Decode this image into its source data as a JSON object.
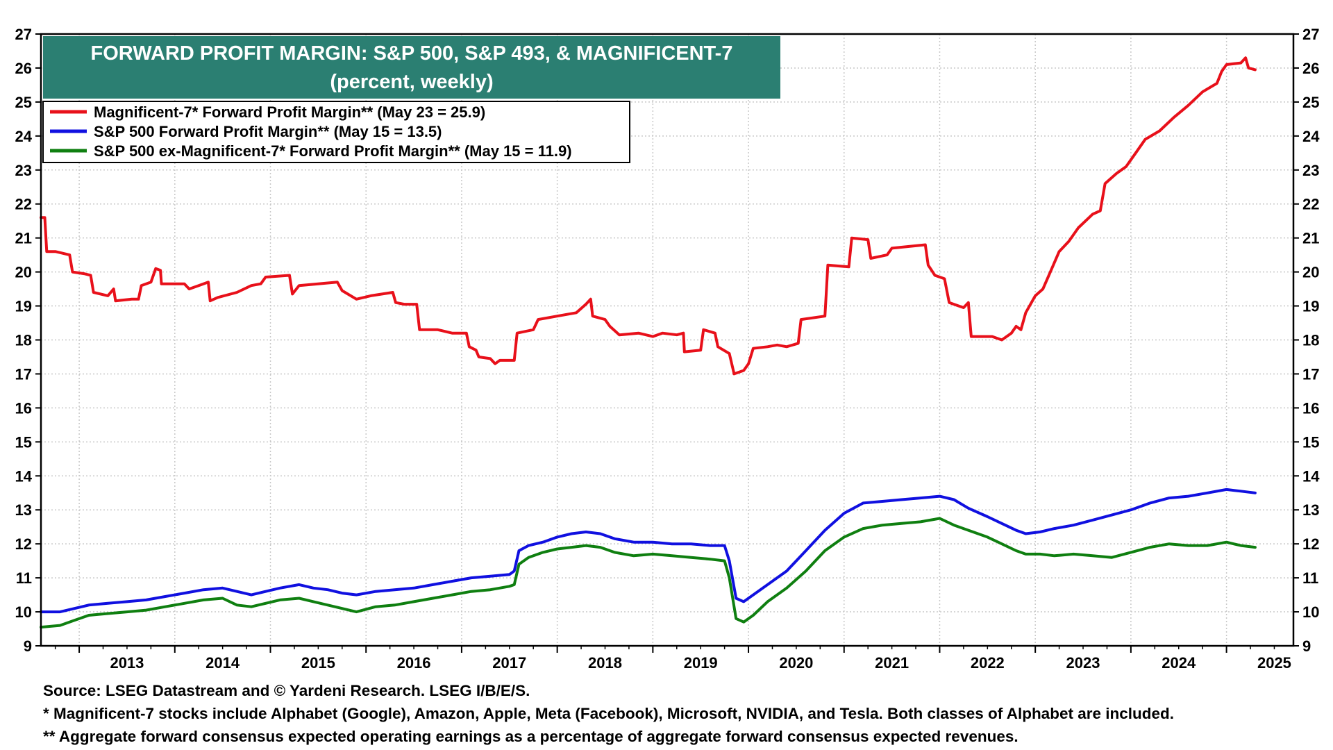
{
  "chart_data": {
    "type": "line",
    "title": "FORWARD PROFIT MARGIN: S&P 500, S&P 493, & MAGNIFICENT-7",
    "subtitle": "(percent, weekly)",
    "ylim": [
      9,
      27
    ],
    "y_ticks": [
      9,
      10,
      11,
      12,
      13,
      14,
      15,
      16,
      17,
      18,
      19,
      20,
      21,
      22,
      23,
      24,
      25,
      26,
      27
    ],
    "x_range": [
      2012.6,
      2025.7
    ],
    "x_tick_labels": [
      "2013",
      "2014",
      "2015",
      "2016",
      "2017",
      "2018",
      "2019",
      "2020",
      "2021",
      "2022",
      "2023",
      "2024",
      "2025"
    ],
    "grid": true,
    "legend_position": "top-left",
    "series": [
      {
        "name": "Magnificent-7* Forward Profit Margin** (May 23 = 25.9)",
        "color": "#e8101a",
        "points": [
          [
            2012.6,
            21.6
          ],
          [
            2012.64,
            21.6
          ],
          [
            2012.66,
            20.6
          ],
          [
            2012.75,
            20.6
          ],
          [
            2012.9,
            20.5
          ],
          [
            2012.93,
            20.0
          ],
          [
            2013.05,
            19.95
          ],
          [
            2013.12,
            19.9
          ],
          [
            2013.15,
            19.4
          ],
          [
            2013.3,
            19.3
          ],
          [
            2013.36,
            19.5
          ],
          [
            2013.38,
            19.15
          ],
          [
            2013.55,
            19.2
          ],
          [
            2013.62,
            19.2
          ],
          [
            2013.65,
            19.6
          ],
          [
            2013.75,
            19.7
          ],
          [
            2013.8,
            20.1
          ],
          [
            2013.85,
            20.05
          ],
          [
            2013.86,
            19.65
          ],
          [
            2014.1,
            19.65
          ],
          [
            2014.15,
            19.5
          ],
          [
            2014.25,
            19.6
          ],
          [
            2014.35,
            19.7
          ],
          [
            2014.37,
            19.15
          ],
          [
            2014.45,
            19.25
          ],
          [
            2014.65,
            19.4
          ],
          [
            2014.8,
            19.6
          ],
          [
            2014.9,
            19.65
          ],
          [
            2014.95,
            19.85
          ],
          [
            2015.2,
            19.9
          ],
          [
            2015.23,
            19.35
          ],
          [
            2015.3,
            19.6
          ],
          [
            2015.7,
            19.7
          ],
          [
            2015.75,
            19.45
          ],
          [
            2015.9,
            19.2
          ],
          [
            2016.05,
            19.3
          ],
          [
            2016.28,
            19.4
          ],
          [
            2016.31,
            19.1
          ],
          [
            2016.4,
            19.05
          ],
          [
            2016.53,
            19.05
          ],
          [
            2016.56,
            18.3
          ],
          [
            2016.75,
            18.3
          ],
          [
            2016.9,
            18.2
          ],
          [
            2017.05,
            18.2
          ],
          [
            2017.08,
            17.8
          ],
          [
            2017.15,
            17.7
          ],
          [
            2017.18,
            17.5
          ],
          [
            2017.3,
            17.45
          ],
          [
            2017.35,
            17.3
          ],
          [
            2017.4,
            17.4
          ],
          [
            2017.55,
            17.4
          ],
          [
            2017.58,
            18.2
          ],
          [
            2017.75,
            18.3
          ],
          [
            2017.8,
            18.6
          ],
          [
            2018.0,
            18.7
          ],
          [
            2018.2,
            18.8
          ],
          [
            2018.3,
            19.05
          ],
          [
            2018.35,
            19.2
          ],
          [
            2018.37,
            18.7
          ],
          [
            2018.5,
            18.6
          ],
          [
            2018.55,
            18.4
          ],
          [
            2018.65,
            18.15
          ],
          [
            2018.85,
            18.2
          ],
          [
            2019.0,
            18.1
          ],
          [
            2019.1,
            18.2
          ],
          [
            2019.25,
            18.15
          ],
          [
            2019.32,
            18.2
          ],
          [
            2019.33,
            17.65
          ],
          [
            2019.5,
            17.7
          ],
          [
            2019.53,
            18.3
          ],
          [
            2019.65,
            18.2
          ],
          [
            2019.68,
            17.8
          ],
          [
            2019.8,
            17.6
          ],
          [
            2019.85,
            17.0
          ],
          [
            2019.95,
            17.1
          ],
          [
            2020.0,
            17.3
          ],
          [
            2020.05,
            17.75
          ],
          [
            2020.2,
            17.8
          ],
          [
            2020.3,
            17.85
          ],
          [
            2020.4,
            17.8
          ],
          [
            2020.52,
            17.9
          ],
          [
            2020.55,
            18.6
          ],
          [
            2020.8,
            18.7
          ],
          [
            2020.83,
            20.2
          ],
          [
            2021.05,
            20.15
          ],
          [
            2021.08,
            21.0
          ],
          [
            2021.25,
            20.95
          ],
          [
            2021.28,
            20.4
          ],
          [
            2021.45,
            20.5
          ],
          [
            2021.5,
            20.7
          ],
          [
            2021.85,
            20.8
          ],
          [
            2021.88,
            20.2
          ],
          [
            2021.95,
            19.9
          ],
          [
            2022.05,
            19.8
          ],
          [
            2022.1,
            19.1
          ],
          [
            2022.2,
            19.0
          ],
          [
            2022.25,
            18.95
          ],
          [
            2022.3,
            19.1
          ],
          [
            2022.33,
            18.1
          ],
          [
            2022.55,
            18.1
          ],
          [
            2022.65,
            18.0
          ],
          [
            2022.75,
            18.2
          ],
          [
            2022.8,
            18.4
          ],
          [
            2022.85,
            18.3
          ],
          [
            2022.9,
            18.8
          ],
          [
            2023.0,
            19.3
          ],
          [
            2023.08,
            19.5
          ],
          [
            2023.15,
            19.95
          ],
          [
            2023.25,
            20.6
          ],
          [
            2023.35,
            20.9
          ],
          [
            2023.45,
            21.3
          ],
          [
            2023.6,
            21.7
          ],
          [
            2023.68,
            21.8
          ],
          [
            2023.73,
            22.6
          ],
          [
            2023.85,
            22.9
          ],
          [
            2023.95,
            23.1
          ],
          [
            2024.05,
            23.5
          ],
          [
            2024.15,
            23.9
          ],
          [
            2024.3,
            24.15
          ],
          [
            2024.45,
            24.55
          ],
          [
            2024.6,
            24.9
          ],
          [
            2024.75,
            25.3
          ],
          [
            2024.9,
            25.55
          ],
          [
            2024.95,
            25.9
          ],
          [
            2025.0,
            26.1
          ],
          [
            2025.15,
            26.15
          ],
          [
            2025.2,
            26.3
          ],
          [
            2025.23,
            26.0
          ],
          [
            2025.3,
            25.95
          ]
        ]
      },
      {
        "name": "S&P 500 Forward Profit Margin** (May 15 = 13.5)",
        "color": "#1010e0",
        "points": [
          [
            2012.6,
            10.0
          ],
          [
            2012.8,
            10.0
          ],
          [
            2012.95,
            10.1
          ],
          [
            2013.1,
            10.2
          ],
          [
            2013.3,
            10.25
          ],
          [
            2013.5,
            10.3
          ],
          [
            2013.7,
            10.35
          ],
          [
            2013.9,
            10.45
          ],
          [
            2014.1,
            10.55
          ],
          [
            2014.3,
            10.65
          ],
          [
            2014.5,
            10.7
          ],
          [
            2014.65,
            10.6
          ],
          [
            2014.8,
            10.5
          ],
          [
            2014.95,
            10.6
          ],
          [
            2015.1,
            10.7
          ],
          [
            2015.3,
            10.8
          ],
          [
            2015.45,
            10.7
          ],
          [
            2015.6,
            10.65
          ],
          [
            2015.75,
            10.55
          ],
          [
            2015.9,
            10.5
          ],
          [
            2016.1,
            10.6
          ],
          [
            2016.3,
            10.65
          ],
          [
            2016.5,
            10.7
          ],
          [
            2016.7,
            10.8
          ],
          [
            2016.9,
            10.9
          ],
          [
            2017.1,
            11.0
          ],
          [
            2017.3,
            11.05
          ],
          [
            2017.5,
            11.1
          ],
          [
            2017.55,
            11.2
          ],
          [
            2017.6,
            11.8
          ],
          [
            2017.7,
            11.95
          ],
          [
            2017.85,
            12.05
          ],
          [
            2018.0,
            12.2
          ],
          [
            2018.15,
            12.3
          ],
          [
            2018.3,
            12.35
          ],
          [
            2018.45,
            12.3
          ],
          [
            2018.6,
            12.15
          ],
          [
            2018.8,
            12.05
          ],
          [
            2019.0,
            12.05
          ],
          [
            2019.2,
            12.0
          ],
          [
            2019.4,
            12.0
          ],
          [
            2019.6,
            11.95
          ],
          [
            2019.75,
            11.95
          ],
          [
            2019.8,
            11.5
          ],
          [
            2019.87,
            10.4
          ],
          [
            2019.95,
            10.3
          ],
          [
            2020.05,
            10.5
          ],
          [
            2020.2,
            10.8
          ],
          [
            2020.4,
            11.2
          ],
          [
            2020.6,
            11.8
          ],
          [
            2020.8,
            12.4
          ],
          [
            2021.0,
            12.9
          ],
          [
            2021.2,
            13.2
          ],
          [
            2021.4,
            13.25
          ],
          [
            2021.6,
            13.3
          ],
          [
            2021.8,
            13.35
          ],
          [
            2022.0,
            13.4
          ],
          [
            2022.15,
            13.3
          ],
          [
            2022.3,
            13.05
          ],
          [
            2022.5,
            12.8
          ],
          [
            2022.65,
            12.6
          ],
          [
            2022.8,
            12.4
          ],
          [
            2022.9,
            12.3
          ],
          [
            2023.05,
            12.35
          ],
          [
            2023.2,
            12.45
          ],
          [
            2023.4,
            12.55
          ],
          [
            2023.6,
            12.7
          ],
          [
            2023.8,
            12.85
          ],
          [
            2024.0,
            13.0
          ],
          [
            2024.2,
            13.2
          ],
          [
            2024.4,
            13.35
          ],
          [
            2024.6,
            13.4
          ],
          [
            2024.8,
            13.5
          ],
          [
            2025.0,
            13.6
          ],
          [
            2025.15,
            13.55
          ],
          [
            2025.3,
            13.5
          ]
        ]
      },
      {
        "name": "S&P 500 ex-Magnificent-7* Forward Profit Margin** (May 15 = 11.9)",
        "color": "#0f7f10",
        "points": [
          [
            2012.6,
            9.55
          ],
          [
            2012.8,
            9.6
          ],
          [
            2012.95,
            9.75
          ],
          [
            2013.1,
            9.9
          ],
          [
            2013.3,
            9.95
          ],
          [
            2013.5,
            10.0
          ],
          [
            2013.7,
            10.05
          ],
          [
            2013.9,
            10.15
          ],
          [
            2014.1,
            10.25
          ],
          [
            2014.3,
            10.35
          ],
          [
            2014.5,
            10.4
          ],
          [
            2014.65,
            10.2
          ],
          [
            2014.8,
            10.15
          ],
          [
            2014.95,
            10.25
          ],
          [
            2015.1,
            10.35
          ],
          [
            2015.3,
            10.4
          ],
          [
            2015.45,
            10.3
          ],
          [
            2015.6,
            10.2
          ],
          [
            2015.75,
            10.1
          ],
          [
            2015.9,
            10.0
          ],
          [
            2016.1,
            10.15
          ],
          [
            2016.3,
            10.2
          ],
          [
            2016.5,
            10.3
          ],
          [
            2016.7,
            10.4
          ],
          [
            2016.9,
            10.5
          ],
          [
            2017.1,
            10.6
          ],
          [
            2017.3,
            10.65
          ],
          [
            2017.5,
            10.75
          ],
          [
            2017.55,
            10.8
          ],
          [
            2017.6,
            11.4
          ],
          [
            2017.7,
            11.6
          ],
          [
            2017.85,
            11.75
          ],
          [
            2018.0,
            11.85
          ],
          [
            2018.15,
            11.9
          ],
          [
            2018.3,
            11.95
          ],
          [
            2018.45,
            11.9
          ],
          [
            2018.6,
            11.75
          ],
          [
            2018.8,
            11.65
          ],
          [
            2019.0,
            11.7
          ],
          [
            2019.2,
            11.65
          ],
          [
            2019.4,
            11.6
          ],
          [
            2019.6,
            11.55
          ],
          [
            2019.75,
            11.5
          ],
          [
            2019.8,
            11.0
          ],
          [
            2019.87,
            9.8
          ],
          [
            2019.95,
            9.7
          ],
          [
            2020.05,
            9.9
          ],
          [
            2020.2,
            10.3
          ],
          [
            2020.4,
            10.7
          ],
          [
            2020.6,
            11.2
          ],
          [
            2020.8,
            11.8
          ],
          [
            2021.0,
            12.2
          ],
          [
            2021.2,
            12.45
          ],
          [
            2021.4,
            12.55
          ],
          [
            2021.6,
            12.6
          ],
          [
            2021.8,
            12.65
          ],
          [
            2022.0,
            12.75
          ],
          [
            2022.15,
            12.55
          ],
          [
            2022.3,
            12.4
          ],
          [
            2022.5,
            12.2
          ],
          [
            2022.65,
            12.0
          ],
          [
            2022.8,
            11.8
          ],
          [
            2022.9,
            11.7
          ],
          [
            2023.05,
            11.7
          ],
          [
            2023.2,
            11.65
          ],
          [
            2023.4,
            11.7
          ],
          [
            2023.6,
            11.65
          ],
          [
            2023.8,
            11.6
          ],
          [
            2024.0,
            11.75
          ],
          [
            2024.2,
            11.9
          ],
          [
            2024.4,
            12.0
          ],
          [
            2024.6,
            11.95
          ],
          [
            2024.8,
            11.95
          ],
          [
            2025.0,
            12.05
          ],
          [
            2025.15,
            11.95
          ],
          [
            2025.3,
            11.9
          ]
        ]
      }
    ]
  },
  "footer": {
    "source": "Source: LSEG Datastream and © Yardeni Research. LSEG I/B/E/S.",
    "note1": "* Magnificent-7 stocks include Alphabet (Google), Amazon, Apple, Meta (Facebook), Microsoft, NVIDIA, and Tesla. Both classes of Alphabet are included.",
    "note2": "** Aggregate forward consensus expected operating earnings as a percentage of aggregate forward consensus expected revenues."
  },
  "colors": {
    "title_bg": "#2b7f72",
    "title_text": "#ffffff",
    "grid": "#c8c8c8"
  }
}
